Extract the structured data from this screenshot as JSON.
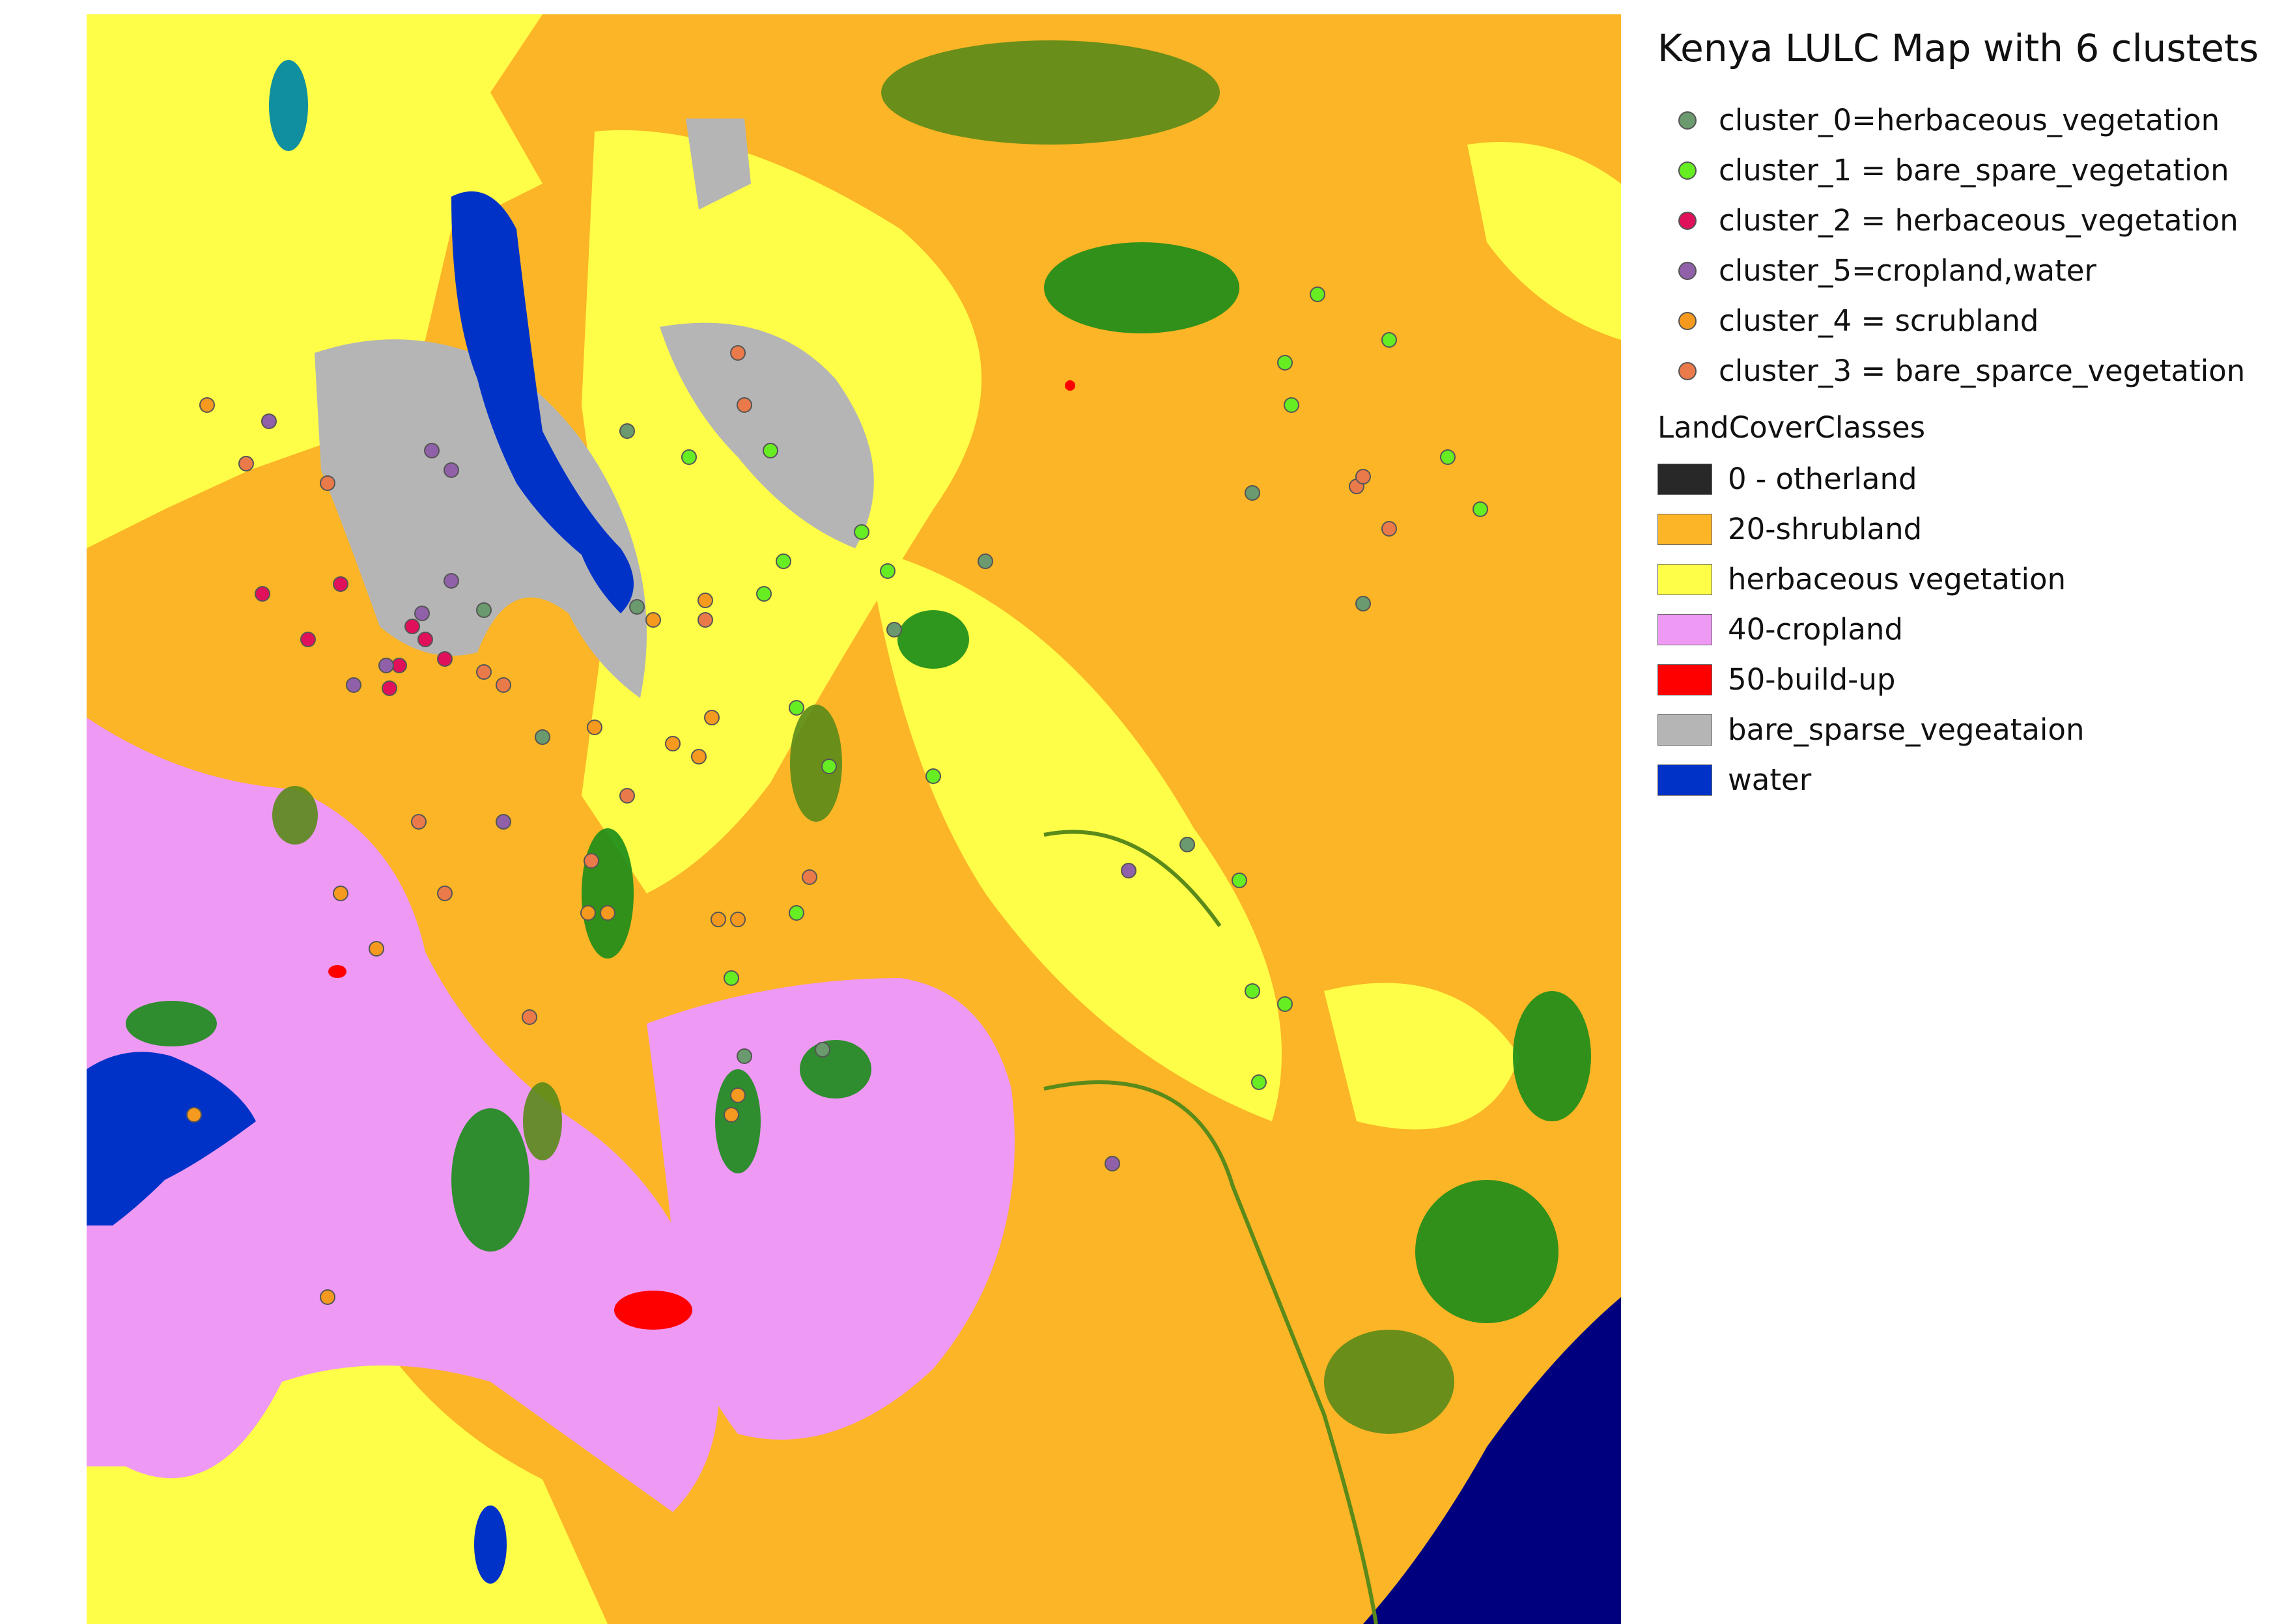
{
  "legend": {
    "title": "Kenya LULC Map with 6 clustets",
    "clusters": [
      {
        "id": "c0",
        "label": "cluster_0=herbaceous_vegetation",
        "color": "#6a9a6e"
      },
      {
        "id": "c1",
        "label": "cluster_1 = bare_spare_vegetation",
        "color": "#66ee22"
      },
      {
        "id": "c2",
        "label": "cluster_2 = herbaceous_vegetation",
        "color": "#e0105a"
      },
      {
        "id": "c5",
        "label": "cluster_5=cropland,water",
        "color": "#9060a8"
      },
      {
        "id": "c4",
        "label": "cluster_4 = scrubland",
        "color": "#f59a1e"
      },
      {
        "id": "c3",
        "label": "cluster_3 = bare_sparce_vegetation",
        "color": "#ea7a4a"
      }
    ],
    "landcover_header": "LandCoverClasses",
    "landcover_classes": [
      {
        "label": "0 - otherland",
        "color": "#282828"
      },
      {
        "label": "20-shrubland",
        "color": "#fbb526"
      },
      {
        "label": "herbaceous vegetation",
        "color": "#fefe48"
      },
      {
        "label": "40-cropland",
        "color": "#ee99f4"
      },
      {
        "label": "50-build-up",
        "color": "#fe0000"
      },
      {
        "label": "bare_sparse_vegeataion",
        "color": "#b5b5b5"
      },
      {
        "label": "water",
        "color": "#0032c8"
      }
    ]
  },
  "map_colors": {
    "shrubland": "#fbb526",
    "herbaceous": "#fefe48",
    "cropland": "#ee99f4",
    "buildup": "#fe0000",
    "bare": "#b5b5b5",
    "water": "#0032c8",
    "ocean": "#00007e",
    "forest": "#1a8c1a",
    "forest_dark": "#5a8a1a",
    "wetland": "#0f8fa0"
  }
}
